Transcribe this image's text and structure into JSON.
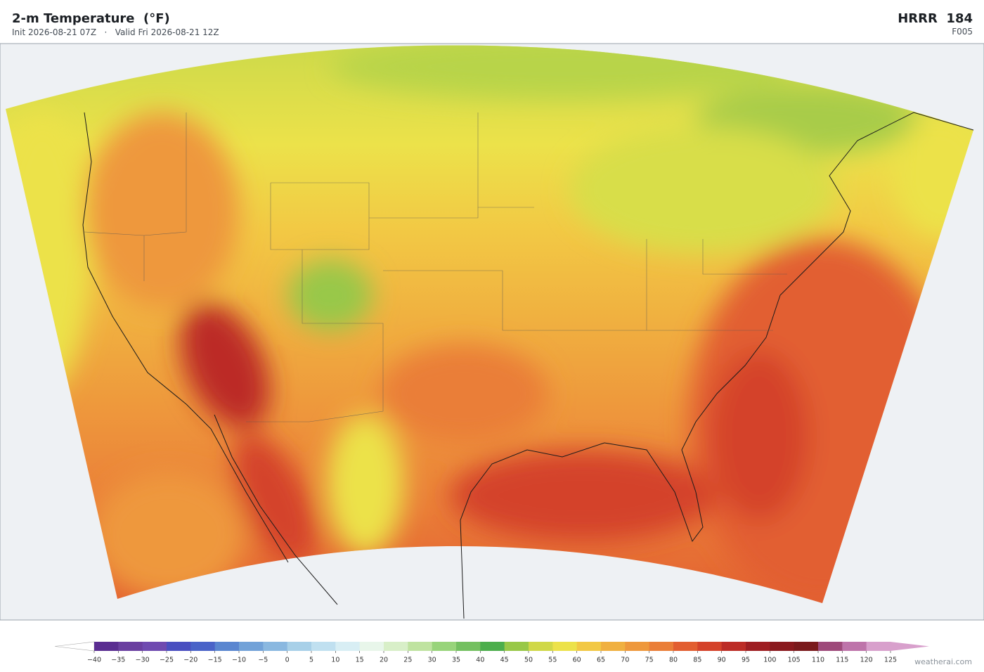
{
  "header": {
    "title": "2-m Temperature  (°F)",
    "subtitle": "Init 2026-08-21 07Z   ·   Valid Fri 2026-08-21 12Z",
    "model": "HRRR  184",
    "forecast_hour": "F005"
  },
  "colorbar": {
    "ticks": [
      {
        "value": -40,
        "label": "−40"
      },
      {
        "value": -35,
        "label": "−35"
      },
      {
        "value": -30,
        "label": "−30"
      },
      {
        "value": -25,
        "label": "−25"
      },
      {
        "value": -20,
        "label": "−20"
      },
      {
        "value": -15,
        "label": "−15"
      },
      {
        "value": -10,
        "label": "−10"
      },
      {
        "value": -5,
        "label": "−5"
      },
      0,
      5,
      10,
      15,
      20,
      25,
      30,
      35,
      40,
      45,
      50,
      55,
      60,
      65,
      70,
      75,
      80,
      85,
      90,
      95,
      100,
      105,
      110,
      115,
      120,
      125
    ],
    "colors": [
      "#5a2d91",
      "#6a3fa0",
      "#6f4ab0",
      "#4a4fc0",
      "#4a63c8",
      "#5a86d0",
      "#72a2d8",
      "#8ab8e0",
      "#a8d0e8",
      "#c0e0f0",
      "#d8eef4",
      "#e8f6ea",
      "#d8efc8",
      "#bfe3a0",
      "#98d47a",
      "#74c060",
      "#4cae4c",
      "#98c848",
      "#d0d848",
      "#ece24a",
      "#f2c844",
      "#f0b040",
      "#ee983c",
      "#ea7e38",
      "#e25e30",
      "#d4422a",
      "#bc2c26",
      "#9e1e22",
      "#8a1a1e",
      "#7a1a1c",
      "#9e4a7a",
      "#be74aa",
      "#d8a0cc"
    ],
    "under_color": "#ffffff",
    "over_color": "#d8a0cc"
  },
  "credit": "weatherai.com"
}
